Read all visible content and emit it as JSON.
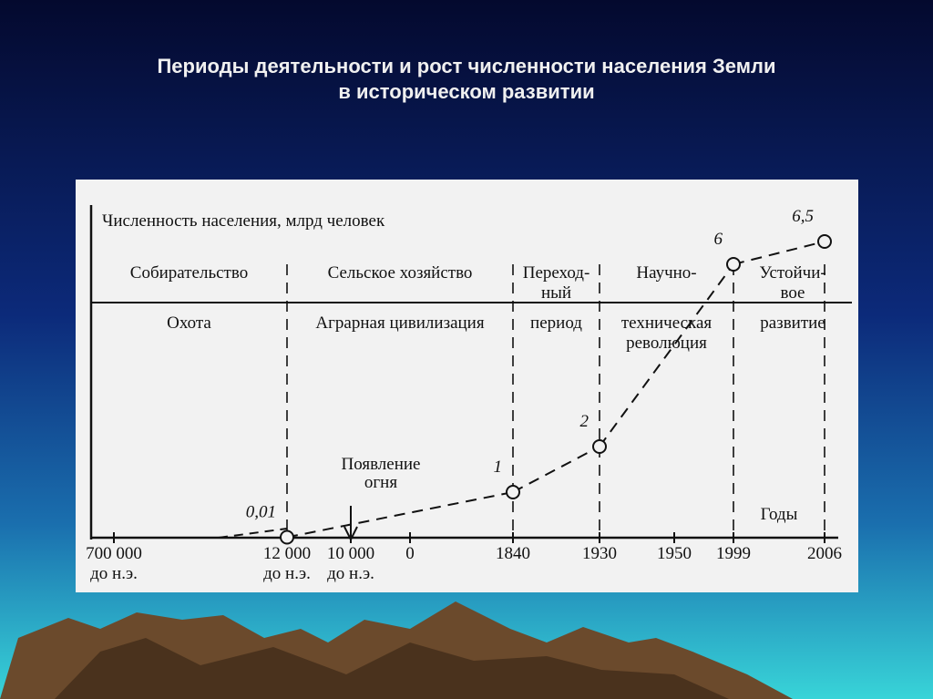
{
  "title": "Периоды деятельности и рост численности населения Земли\nв историческом развитии",
  "chart_data": {
    "type": "line",
    "y_label": "Численность населения, млрд человек",
    "x_label": "Годы",
    "categories": [
      "700 000\nдо н.э.",
      "12 000\nдо н.э.",
      "10 000\nдо н.э.",
      "0",
      "1840",
      "1930",
      "1950",
      "1999",
      "2006"
    ],
    "values": [
      null,
      0.01,
      null,
      null,
      1,
      2,
      null,
      6,
      6.5
    ],
    "value_labels": [
      null,
      "0,01",
      null,
      null,
      "1",
      "2",
      null,
      "6",
      "6,5"
    ],
    "periods": [
      {
        "top": "Собирательство",
        "bottom": "Охота"
      },
      {
        "top": "Сельское хозяйство",
        "bottom": "Аграрная цивилизация"
      },
      {
        "top": "Переход-\nный",
        "bottom": "период"
      },
      {
        "top": "Научно-",
        "bottom": "техническая\nреволюция"
      },
      {
        "top": "Устойчи-\nвое",
        "bottom": "развитие"
      }
    ],
    "annotations": [
      {
        "text": "Появление\nогня"
      }
    ]
  }
}
